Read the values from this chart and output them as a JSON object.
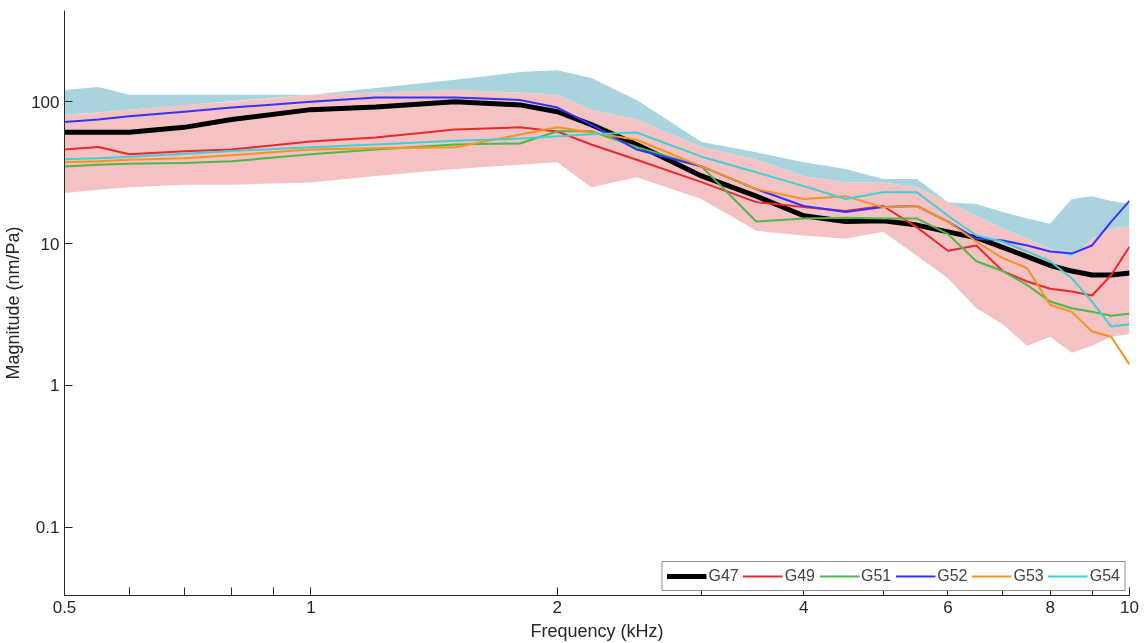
{
  "chart_data": {
    "type": "line",
    "xlabel": "Frequency (kHz)",
    "ylabel": "Magnitude (nm/Pa)",
    "log": "xy",
    "grid": false,
    "legend": "bottom right",
    "xlim": [
      0.5,
      10
    ],
    "ylim": [
      0.033,
      440
    ],
    "xticks": [
      0.5,
      {
        "value": 0.6,
        "label": null
      },
      {
        "value": 0.7,
        "label": null
      },
      {
        "value": 0.8,
        "label": null
      },
      {
        "value": 0.9,
        "label": null
      },
      1,
      2,
      {
        "value": 3,
        "label": null
      },
      4,
      {
        "value": 5,
        "label": null
      },
      6,
      {
        "value": 7,
        "label": null
      },
      8,
      {
        "value": 9,
        "label": null
      },
      10
    ],
    "yticks": [
      0.1,
      1,
      10,
      100
    ],
    "x": [
      0.5,
      0.55,
      0.6,
      0.7,
      0.8,
      1,
      1.2,
      1.5,
      1.8,
      2,
      2.2,
      2.5,
      3,
      3.5,
      4,
      4.5,
      5,
      5.5,
      6,
      6.5,
      7,
      7.5,
      8,
      8.5,
      9,
      9.5,
      10
    ],
    "series": [
      {
        "color": "#f4c2c2",
        "values": [
          null,
          null,
          null,
          null,
          null,
          null,
          null,
          null,
          null,
          null,
          null,
          null,
          null,
          null,
          null,
          null,
          null,
          null,
          null,
          null,
          null,
          null,
          null,
          null,
          null,
          null,
          null
        ],
        "lower": [
          22.7,
          24,
          25,
          26,
          26,
          27,
          30,
          33.5,
          36,
          37.5,
          25,
          29.4,
          20.6,
          12.3,
          11.4,
          10.8,
          12.1,
          8.2,
          5.7,
          3.5,
          2.7,
          1.9,
          2.2,
          1.7,
          1.9,
          2.2,
          2.3
        ],
        "upper": [
          81,
          84,
          88,
          95,
          100,
          112,
          116,
          121,
          116,
          112,
          88,
          75,
          48,
          39,
          30,
          27,
          27,
          25,
          19.6,
          15.7,
          12.8,
          10.8,
          9.2,
          7.9,
          10.8,
          12.8,
          13.2
        ]
      },
      {
        "color": "#a9d4de",
        "values": [
          null,
          null,
          null,
          null,
          null,
          null,
          null,
          null,
          null,
          null,
          null,
          null,
          null,
          null,
          null,
          null,
          null,
          null,
          null,
          null,
          null,
          null,
          null,
          null,
          null,
          null,
          null
        ],
        "lower": [
          81,
          84,
          88,
          null,
          null,
          112,
          116,
          121,
          116,
          112,
          88,
          75,
          48,
          39,
          30,
          27,
          27,
          25,
          19.6,
          15.7,
          12.8,
          10.8,
          9.2,
          7.9,
          10.8,
          12.8,
          13.2
        ],
        "upper": [
          121,
          127,
          112,
          null,
          null,
          112,
          125,
          143,
          162,
          167,
          147,
          103,
          52,
          44,
          37.5,
          33.5,
          28.5,
          28.5,
          19.6,
          19,
          16.7,
          15,
          13.8,
          20.6,
          21.6,
          20,
          19
        ]
      },
      {
        "name": "G47",
        "color": "#000000",
        "values": [
          61,
          61,
          61,
          66,
          75,
          88,
          92,
          100,
          95,
          85,
          69,
          50,
          30,
          21.6,
          15.7,
          14.3,
          14.5,
          13.5,
          12.1,
          11,
          9.4,
          8.1,
          7,
          6.4,
          6,
          6,
          6.2
        ]
      },
      {
        "name": "G49",
        "color": "#e8292e",
        "values": [
          46,
          48,
          42.6,
          44.7,
          46,
          52.5,
          56,
          63.7,
          66,
          61.7,
          50,
          39,
          27.1,
          19.6,
          18.1,
          17,
          18.4,
          13,
          8.9,
          9.7,
          6.4,
          5.4,
          4.8,
          4.6,
          4.3,
          6,
          9.5
        ]
      },
      {
        "name": "G51",
        "color": "#4db848",
        "values": [
          35,
          36,
          36.5,
          37,
          38,
          42.6,
          46,
          50,
          50.8,
          62,
          62,
          48,
          35,
          14.3,
          15,
          15.2,
          15,
          15,
          11.7,
          7.5,
          6.4,
          5.1,
          3.9,
          3.5,
          3.3,
          3.1,
          3.2
        ]
      },
      {
        "name": "G52",
        "color": "#3333ff",
        "values": [
          72,
          75,
          79,
          85,
          91,
          100,
          107,
          107,
          103,
          91,
          69,
          46,
          35,
          24.2,
          18.4,
          16.7,
          18.1,
          18.4,
          14.3,
          10.8,
          10.5,
          9.7,
          8.8,
          8.5,
          9.7,
          14.3,
          20
        ]
      },
      {
        "name": "G53",
        "color": "#f7931e",
        "values": [
          37.5,
          38,
          39,
          40,
          42,
          46,
          47,
          47.7,
          58.7,
          66,
          60.7,
          54,
          35,
          24.2,
          20.6,
          21.6,
          18,
          18.4,
          14.3,
          10.3,
          7.9,
          6.7,
          3.7,
          3.3,
          2.4,
          2.2,
          1.4
        ]
      },
      {
        "name": "G54",
        "color": "#3fd0d6",
        "values": [
          39.3,
          40,
          41,
          43,
          45,
          47.7,
          50,
          53,
          55,
          57,
          59,
          60.7,
          41,
          31.8,
          25.4,
          20.6,
          23,
          23,
          15.7,
          11.4,
          10.3,
          8.8,
          7.5,
          5.7,
          3.9,
          2.6,
          2.7
        ]
      }
    ]
  }
}
